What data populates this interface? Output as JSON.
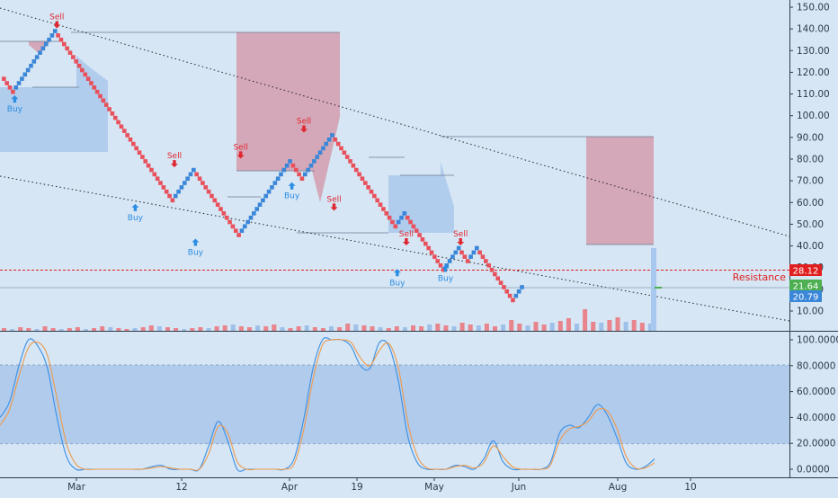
{
  "colors": {
    "background": "#d6e6f4",
    "up_brick": "#3a86d8",
    "down_brick": "#e8505b",
    "buy": "#2b8de3",
    "sell": "#e0262f",
    "zone_red": "#d4a8b8",
    "zone_blue": "#b1cdee",
    "stoch_k": "#3c8fe4",
    "stoch_d": "#ee9a4d",
    "stoch_band": "#a9c6ea",
    "resistance": "#e02020",
    "price_green": "#4caf50"
  },
  "axes": {
    "price_ticks": [
      "150.00",
      "140.00",
      "130.00",
      "120.00",
      "110.00",
      "100.00",
      "90.00",
      "80.00",
      "70.00",
      "60.00",
      "50.00",
      "40.00",
      "30.00",
      "20.00",
      "10.00"
    ],
    "stoch_ticks": [
      "100.0000",
      "80.0000",
      "60.0000",
      "40.0000",
      "20.0000",
      "0.0000"
    ],
    "time_ticks": [
      "Mar",
      "12",
      "Apr",
      "19",
      "May",
      "Jun",
      "Aug",
      "10"
    ]
  },
  "labels": {
    "resistance_text": "Resistance",
    "resistance_price": "28.12",
    "last_price": "21.64",
    "last_low": "20.79"
  },
  "chart_data": [
    {
      "type": "renko",
      "brick_size": 2,
      "ylim": [
        4,
        156
      ],
      "x": [
        "Mar",
        "12",
        "Apr",
        "19",
        "May",
        "Jun",
        "Aug",
        "10"
      ],
      "bricks_path": [
        {
          "from": 119,
          "to": 111
        },
        {
          "from": 111,
          "to": 139
        },
        {
          "from": 139,
          "to": 87
        },
        {
          "from": 87,
          "to": 61
        },
        {
          "from": 61,
          "to": 75
        },
        {
          "from": 75,
          "to": 45
        },
        {
          "from": 45,
          "to": 79
        },
        {
          "from": 79,
          "to": 71
        },
        {
          "from": 71,
          "to": 91
        },
        {
          "from": 91,
          "to": 49
        },
        {
          "from": 49,
          "to": 55
        },
        {
          "from": 55,
          "to": 29
        },
        {
          "from": 29,
          "to": 39
        },
        {
          "from": 39,
          "to": 33
        },
        {
          "from": 33,
          "to": 39
        },
        {
          "from": 39,
          "to": 31
        },
        {
          "from": 31,
          "to": 15
        },
        {
          "from": 15,
          "to": 21
        }
      ],
      "signals": [
        {
          "type": "Buy",
          "price": 111
        },
        {
          "type": "Sell",
          "price": 139
        },
        {
          "type": "Buy",
          "price": 61
        },
        {
          "type": "Sell",
          "price": 75
        },
        {
          "type": "Buy",
          "price": 45
        },
        {
          "type": "Sell",
          "price": 79
        },
        {
          "type": "Buy",
          "price": 71
        },
        {
          "type": "Sell",
          "price": 91
        },
        {
          "type": "Sell",
          "price": 55
        },
        {
          "type": "Buy",
          "price": 31
        },
        {
          "type": "Sell",
          "price": 39
        },
        {
          "type": "Buy",
          "price": 33
        },
        {
          "type": "Sell",
          "price": 39
        }
      ],
      "levels": [
        {
          "name": "Resistance",
          "value": 28.12
        },
        {
          "name": "last",
          "value": 21.64
        },
        {
          "name": "low",
          "value": 20.79
        }
      ]
    },
    {
      "type": "line",
      "ylim": [
        -5,
        105
      ],
      "band": [
        20,
        80
      ],
      "series": [
        {
          "values": [
            40,
            52,
            80,
            100,
            95,
            78,
            40,
            10,
            0,
            0,
            0,
            0,
            0,
            0,
            0,
            0,
            2,
            3,
            0,
            0,
            0,
            0,
            18,
            37,
            22,
            0,
            0,
            0,
            0,
            0,
            0,
            8,
            38,
            78,
            100,
            100,
            100,
            95,
            80,
            78,
            98,
            95,
            68,
            25,
            5,
            0,
            0,
            0,
            3,
            2,
            0,
            8,
            22,
            6,
            0,
            0,
            0,
            0,
            5,
            28,
            34,
            32,
            40,
            50,
            42,
            25,
            5,
            0,
            2,
            8
          ]
        },
        {
          "values": [
            34,
            46,
            72,
            94,
            98,
            88,
            55,
            20,
            4,
            0,
            0,
            0,
            0,
            0,
            0,
            0,
            1,
            2,
            1,
            0,
            0,
            0,
            12,
            33,
            28,
            6,
            0,
            0,
            0,
            0,
            0,
            4,
            30,
            70,
            96,
            100,
            100,
            98,
            86,
            80,
            92,
            97,
            78,
            36,
            10,
            1,
            0,
            0,
            2,
            3,
            1,
            5,
            18,
            10,
            2,
            0,
            0,
            0,
            3,
            22,
            31,
            33,
            37,
            46,
            45,
            32,
            10,
            1,
            1,
            5
          ]
        }
      ]
    }
  ]
}
